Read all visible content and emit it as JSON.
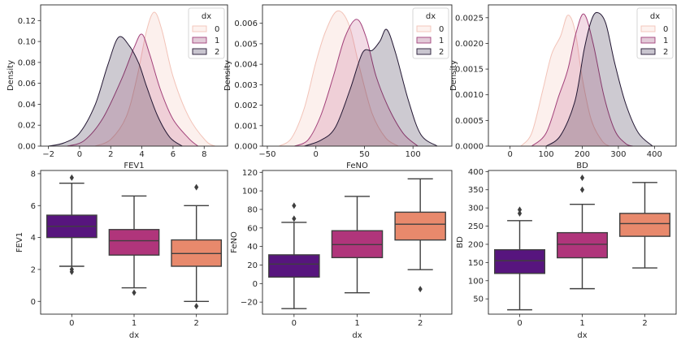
{
  "chart_data": [
    {
      "type": "area",
      "subtype": "kde",
      "xlabel": "FEV1",
      "ylabel": "Density",
      "xlim": [
        -2.5,
        9.5
      ],
      "ylim": [
        0,
        0.135
      ],
      "xticks": [
        -2,
        0,
        2,
        4,
        6,
        8
      ],
      "yticks": [
        0.0,
        0.02,
        0.04,
        0.06,
        0.08,
        0.1,
        0.12
      ],
      "ytick_labels": [
        "0.00",
        "0.02",
        "0.04",
        "0.06",
        "0.08",
        "0.10",
        "0.12"
      ],
      "legend": {
        "title": "dx",
        "placement": "top-right",
        "entries": [
          "0",
          "1",
          "2"
        ]
      },
      "series": [
        {
          "name": "0",
          "color": "#f7d9d2",
          "peak_x": 4.8,
          "peak_y": 0.128
        },
        {
          "name": "1",
          "color": "#b9568a",
          "peak_x": 4.0,
          "peak_y": 0.107
        },
        {
          "name": "2",
          "color": "#2d1e3e",
          "peak_x": 2.5,
          "peak_y": 0.104
        }
      ]
    },
    {
      "type": "area",
      "subtype": "kde",
      "xlabel": "FeNO",
      "ylabel": "Density",
      "xlim": [
        -55,
        140
      ],
      "ylim": [
        0,
        0.0069
      ],
      "xticks": [
        -50,
        0,
        50,
        100
      ],
      "yticks": [
        0.0,
        0.001,
        0.002,
        0.003,
        0.004,
        0.005,
        0.006
      ],
      "ytick_labels": [
        "0.000",
        "0.001",
        "0.002",
        "0.003",
        "0.004",
        "0.005",
        "0.006"
      ],
      "legend": {
        "title": "dx",
        "placement": "top-right",
        "entries": [
          "0",
          "1",
          "2"
        ]
      },
      "series": [
        {
          "name": "0",
          "color": "#f7d9d2",
          "peak_x": 22,
          "peak_y": 0.0066
        },
        {
          "name": "1",
          "color": "#b9568a",
          "peak_x": 42,
          "peak_y": 0.0062
        },
        {
          "name": "2",
          "color": "#2d1e3e",
          "peak_x": 73,
          "peak_y": 0.0057
        }
      ]
    },
    {
      "type": "area",
      "subtype": "kde",
      "xlabel": "BD",
      "ylabel": "Density",
      "xlim": [
        -60,
        460
      ],
      "ylim": [
        0,
        0.00275
      ],
      "xticks": [
        0,
        100,
        200,
        300,
        400
      ],
      "yticks": [
        0.0,
        0.0005,
        0.001,
        0.0015,
        0.002,
        0.0025
      ],
      "ytick_labels": [
        "0.0000",
        "0.0005",
        "0.0010",
        "0.0015",
        "0.0020",
        "0.0025"
      ],
      "legend": {
        "title": "dx",
        "placement": "top-right",
        "entries": [
          "0",
          "1",
          "2"
        ]
      },
      "series": [
        {
          "name": "0",
          "color": "#f7d9d2",
          "peak_x": 160,
          "peak_y": 0.00255
        },
        {
          "name": "1",
          "color": "#b9568a",
          "peak_x": 205,
          "peak_y": 0.00257
        },
        {
          "name": "2",
          "color": "#2d1e3e",
          "peak_x": 242,
          "peak_y": 0.0026
        }
      ]
    },
    {
      "type": "box",
      "xlabel": "dx",
      "ylabel": "FEV1",
      "categories": [
        "0",
        "1",
        "2"
      ],
      "ylim": [
        -0.8,
        8.2
      ],
      "yticks": [
        0,
        2,
        4,
        6,
        8
      ],
      "ytick_labels": [
        "0",
        "2",
        "4",
        "6",
        "8"
      ],
      "boxes": [
        {
          "category": "0",
          "color": "#57157e",
          "whislo": 2.2,
          "q1": 4.0,
          "med": 4.7,
          "q3": 5.4,
          "whishi": 7.4,
          "fliers": [
            7.75,
            2.0,
            1.85
          ]
        },
        {
          "category": "1",
          "color": "#b0357b",
          "whislo": 0.85,
          "q1": 2.9,
          "med": 3.8,
          "q3": 4.5,
          "whishi": 6.6,
          "fliers": [
            0.55
          ]
        },
        {
          "category": "2",
          "color": "#e8896c",
          "whislo": 0.0,
          "q1": 2.2,
          "med": 3.0,
          "q3": 3.85,
          "whishi": 6.0,
          "fliers": [
            7.15,
            -0.3
          ]
        }
      ]
    },
    {
      "type": "box",
      "xlabel": "dx",
      "ylabel": "FeNO",
      "categories": [
        "0",
        "1",
        "2"
      ],
      "ylim": [
        -33,
        122
      ],
      "yticks": [
        -20,
        0,
        20,
        40,
        60,
        80,
        100,
        120
      ],
      "ytick_labels": [
        "−20",
        "0",
        "20",
        "40",
        "60",
        "80",
        "100",
        "120"
      ],
      "boxes": [
        {
          "category": "0",
          "color": "#57157e",
          "whislo": -27,
          "q1": 7,
          "med": 21,
          "q3": 31,
          "whishi": 66,
          "fliers": [
            84,
            70
          ]
        },
        {
          "category": "1",
          "color": "#b0357b",
          "whislo": -10,
          "q1": 28,
          "med": 42,
          "q3": 57,
          "whishi": 94,
          "fliers": []
        },
        {
          "category": "2",
          "color": "#e8896c",
          "whislo": 15,
          "q1": 47,
          "med": 64,
          "q3": 77,
          "whishi": 113,
          "fliers": [
            -6
          ]
        }
      ]
    },
    {
      "type": "box",
      "xlabel": "dx",
      "ylabel": "BD",
      "categories": [
        "0",
        "1",
        "2"
      ],
      "ylim": [
        8,
        403
      ],
      "yticks": [
        50,
        100,
        150,
        200,
        250,
        300,
        350,
        400
      ],
      "ytick_labels": [
        "50",
        "100",
        "150",
        "200",
        "250",
        "300",
        "350",
        "400"
      ],
      "boxes": [
        {
          "category": "0",
          "color": "#57157e",
          "whislo": 20,
          "q1": 120,
          "med": 155,
          "q3": 185,
          "whishi": 265,
          "fliers": [
            295,
            285
          ]
        },
        {
          "category": "1",
          "color": "#b0357b",
          "whislo": 78,
          "q1": 163,
          "med": 200,
          "q3": 232,
          "whishi": 310,
          "fliers": [
            383,
            350
          ]
        },
        {
          "category": "2",
          "color": "#e8896c",
          "whislo": 135,
          "q1": 222,
          "med": 257,
          "q3": 285,
          "whishi": 370,
          "fliers": []
        }
      ]
    }
  ]
}
